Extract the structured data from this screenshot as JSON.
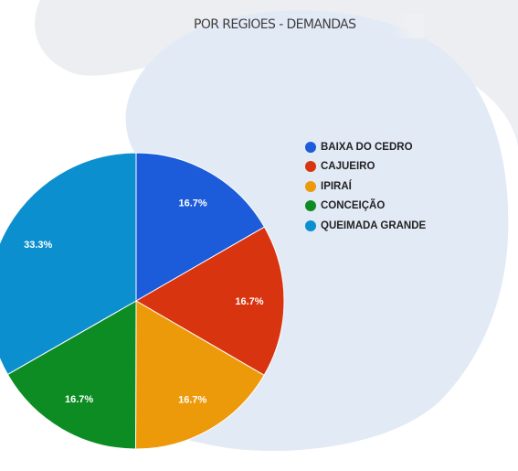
{
  "title": "POR REGIÕES - DEMANDAS",
  "colors": {
    "background_blob_outer": "#eceef1",
    "background_blob_inner": "#e2eaf6",
    "label_text": "#ffffff"
  },
  "chart_data": {
    "type": "pie",
    "title": "POR REGIÕES - DEMANDAS",
    "legend_position": "right",
    "slices": [
      {
        "name": "BAIXA DO CEDRO",
        "value": 16.7,
        "label": "16.7%",
        "color": "#1c5bd9"
      },
      {
        "name": "CAJUEIRO",
        "value": 16.7,
        "label": "16.7%",
        "color": "#d93410"
      },
      {
        "name": "IPIRAÍ",
        "value": 16.7,
        "label": "16.7%",
        "color": "#ed9a0a"
      },
      {
        "name": "CONCEIÇÃO",
        "value": 16.7,
        "label": "16.7%",
        "color": "#0d8c23"
      },
      {
        "name": "QUEIMADA GRANDE",
        "value": 33.3,
        "label": "33.3%",
        "color": "#0b8fce"
      }
    ]
  }
}
